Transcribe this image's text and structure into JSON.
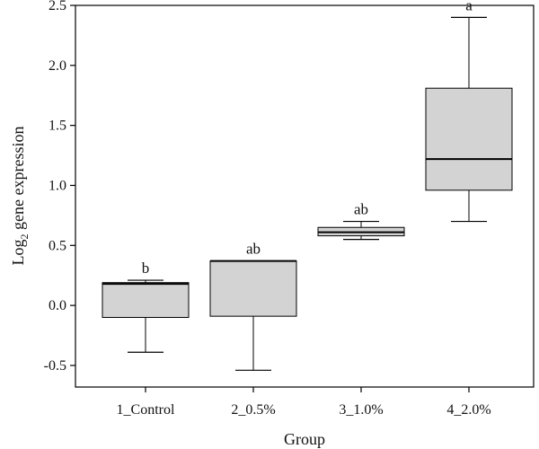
{
  "chart_data": {
    "type": "box",
    "xlabel": "Group",
    "ylabel_main": "Log",
    "ylabel_sub": "2",
    "ylabel_rest": " gene expression",
    "ylim": [
      -0.68,
      2.5
    ],
    "yticks": [
      -0.5,
      0.0,
      0.5,
      1.0,
      1.5,
      2.0,
      2.5
    ],
    "ytick_labels": [
      "-0.5",
      "0.0",
      "0.5",
      "1.0",
      "1.5",
      "2.0",
      "2.5"
    ],
    "categories": [
      "1_Control",
      "2_0.5%",
      "3_1.0%",
      "4_2.0%"
    ],
    "box_color": "#d3d3d3",
    "groups": [
      {
        "name": "1_Control",
        "min": -0.39,
        "q1": -0.1,
        "median": 0.18,
        "q3": 0.19,
        "max": 0.21,
        "letter": "b"
      },
      {
        "name": "2_0.5%",
        "min": -0.54,
        "q1": -0.09,
        "median": 0.37,
        "q3": 0.37,
        "max": 0.37,
        "letter": "ab"
      },
      {
        "name": "3_1.0%",
        "min": 0.55,
        "q1": 0.58,
        "median": 0.61,
        "q3": 0.65,
        "max": 0.7,
        "letter": "ab"
      },
      {
        "name": "4_2.0%",
        "min": 0.7,
        "q1": 0.96,
        "median": 1.22,
        "q3": 1.81,
        "max": 2.4,
        "letter": "a"
      }
    ]
  }
}
